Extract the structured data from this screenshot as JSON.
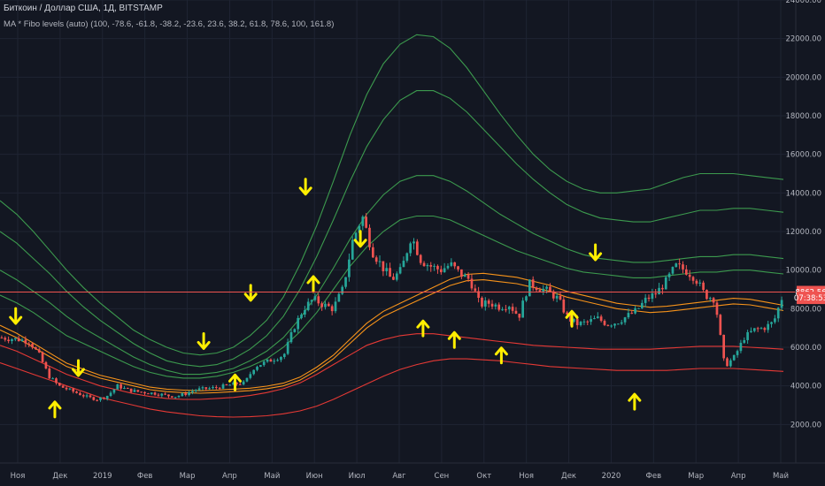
{
  "header": {
    "title": "Биткоин / Доллар США, 1Д, BITSTAMP",
    "indicator": "MA * Fibo levels (auto) (100, -78.6, -61.8, -38.2, -23.6, 23.6, 38.2, 61.8, 78.6, 100, 161.8)"
  },
  "colors": {
    "background": "#131722",
    "grid": "#1f2433",
    "candle_up": "#26a69a",
    "candle_down": "#ef5350",
    "ma_line": "#f7931a",
    "upper_bands": "#3c9a4e",
    "lower_bands": "#e53935",
    "arrows": "#ffee00"
  },
  "chart_data": {
    "type": "candlestick",
    "y_axis": {
      "ticks": [
        "2000.00",
        "4000.00",
        "6000.00",
        "8000.00",
        "10000.00",
        "12000.00",
        "14000.00",
        "16000.00",
        "18000.00",
        "20000.00",
        "22000.00",
        "24000.00"
      ],
      "ylim": [
        0,
        24000
      ]
    },
    "x_axis": {
      "ticks": [
        "Ноя",
        "Дек",
        "2019",
        "Фев",
        "Мар",
        "Апр",
        "Май",
        "Июн",
        "Июл",
        "Авг",
        "Сен",
        "Окт",
        "Ноя",
        "Дек",
        "2020",
        "Фев",
        "Мар",
        "Апр",
        "Май"
      ]
    },
    "price_tags": [
      {
        "label": "8862.56",
        "value": 8862.56,
        "color": "#ef5350"
      },
      {
        "label": "07:38:53",
        "value": 8560,
        "color": "#ef5350"
      }
    ],
    "price_line": 8862.56,
    "price_path": [
      6500,
      6450,
      6400,
      6300,
      5600,
      4500,
      4000,
      3800,
      3600,
      3400,
      3300,
      3500,
      4000,
      3800,
      3700,
      3650,
      3600,
      3500,
      3450,
      3600,
      3800,
      3850,
      3900,
      4000,
      4100,
      4150,
      5000,
      5200,
      5400,
      5600,
      7000,
      8000,
      8500,
      8200,
      8000,
      9000,
      11500,
      12800,
      11000,
      10200,
      9500,
      10000,
      11800,
      10500,
      10200,
      10000,
      10300,
      9800,
      9500,
      8200,
      8300,
      8100,
      8200,
      7600,
      9300,
      9100,
      8900,
      8500,
      7500,
      7200,
      7300,
      7500,
      7200,
      7300,
      7600,
      7900,
      8500,
      8800,
      9400,
      10200,
      10000,
      9600,
      8700,
      8500,
      5000,
      5500,
      6500,
      6900,
      7000,
      7300,
      8800
    ],
    "moving_average": [
      6900,
      6500,
      6000,
      5500,
      5000,
      4700,
      4400,
      4200,
      4000,
      3800,
      3700,
      3650,
      3620,
      3650,
      3700,
      3750,
      3850,
      4000,
      4300,
      4800,
      5400,
      6200,
      7000,
      7600,
      8000,
      8400,
      8800,
      9200,
      9450,
      9500,
      9400,
      9300,
      9100,
      8900,
      8600,
      8400,
      8200,
      8000,
      7900,
      7800,
      7850,
      7950,
      8050,
      8150,
      8250,
      8200,
      8050,
      7900
    ],
    "upper_bands": [
      [
        8700,
        8300,
        7800,
        7200,
        6600,
        6200,
        5800,
        5400,
        5000,
        4700,
        4500,
        4400,
        4400,
        4500,
        4700,
        5000,
        5400,
        6000,
        6800,
        7800,
        9000,
        10200,
        11200,
        12000,
        12600,
        12800,
        12800,
        12600,
        12200,
        11800,
        11400,
        11000,
        10700,
        10400,
        10100,
        9900,
        9800,
        9700,
        9600,
        9600,
        9700,
        9800,
        9900,
        9900,
        10000,
        10000,
        9900,
        9800
      ],
      [
        10000,
        9500,
        8900,
        8300,
        7600,
        7000,
        6500,
        6000,
        5500,
        5100,
        4800,
        4600,
        4600,
        4700,
        4900,
        5300,
        5800,
        6500,
        7500,
        8700,
        10100,
        11600,
        12900,
        13900,
        14600,
        14900,
        14900,
        14600,
        14100,
        13500,
        12900,
        12400,
        11900,
        11500,
        11100,
        10800,
        10600,
        10500,
        10400,
        10400,
        10500,
        10600,
        10700,
        10700,
        10800,
        10800,
        10700,
        10600
      ],
      [
        12000,
        11400,
        10600,
        9800,
        8900,
        8100,
        7400,
        6800,
        6200,
        5700,
        5300,
        5100,
        5000,
        5100,
        5400,
        5900,
        6600,
        7600,
        9000,
        10700,
        12600,
        14600,
        16400,
        17800,
        18800,
        19300,
        19300,
        18900,
        18200,
        17300,
        16400,
        15500,
        14700,
        14000,
        13400,
        13000,
        12700,
        12600,
        12500,
        12500,
        12700,
        12900,
        13100,
        13100,
        13200,
        13200,
        13100,
        13000
      ],
      [
        13600,
        12900,
        12000,
        11000,
        10000,
        9100,
        8300,
        7600,
        6900,
        6400,
        6000,
        5700,
        5600,
        5700,
        6000,
        6600,
        7400,
        8600,
        10300,
        12300,
        14600,
        17000,
        19100,
        20700,
        21700,
        22200,
        22100,
        21500,
        20500,
        19300,
        18100,
        17000,
        16000,
        15200,
        14600,
        14200,
        14000,
        14000,
        14100,
        14200,
        14500,
        14800,
        15000,
        15000,
        15000,
        14900,
        14800,
        14700
      ]
    ],
    "lower_bands": [
      [
        6100,
        5800,
        5400,
        5000,
        4600,
        4300,
        4000,
        3800,
        3600,
        3450,
        3350,
        3300,
        3300,
        3350,
        3400,
        3500,
        3650,
        3850,
        4150,
        4600,
        5100,
        5600,
        6100,
        6400,
        6600,
        6700,
        6700,
        6600,
        6500,
        6400,
        6300,
        6200,
        6100,
        6050,
        6000,
        5950,
        5900,
        5900,
        5900,
        5900,
        5950,
        6000,
        6050,
        6050,
        6050,
        6000,
        5950,
        5900
      ],
      [
        5200,
        4900,
        4600,
        4300,
        4000,
        3700,
        3400,
        3200,
        3000,
        2800,
        2650,
        2550,
        2450,
        2400,
        2380,
        2400,
        2450,
        2550,
        2700,
        2950,
        3300,
        3700,
        4100,
        4500,
        4850,
        5100,
        5300,
        5400,
        5400,
        5350,
        5300,
        5200,
        5100,
        5000,
        4950,
        4900,
        4850,
        4800,
        4800,
        4800,
        4800,
        4850,
        4900,
        4900,
        4900,
        4850,
        4800,
        4750
      ]
    ],
    "annotations": {
      "down_arrows": [
        [
          0.02,
          7600
        ],
        [
          0.1,
          4900
        ],
        [
          0.26,
          6300
        ],
        [
          0.32,
          8800
        ],
        [
          0.39,
          14300
        ],
        [
          0.46,
          11600
        ],
        [
          0.76,
          10900
        ]
      ],
      "up_arrows": [
        [
          0.07,
          2800
        ],
        [
          0.3,
          4200
        ],
        [
          0.4,
          9300
        ],
        [
          0.54,
          7000
        ],
        [
          0.58,
          6400
        ],
        [
          0.64,
          5600
        ],
        [
          0.73,
          7500
        ],
        [
          0.81,
          3200
        ]
      ]
    }
  }
}
